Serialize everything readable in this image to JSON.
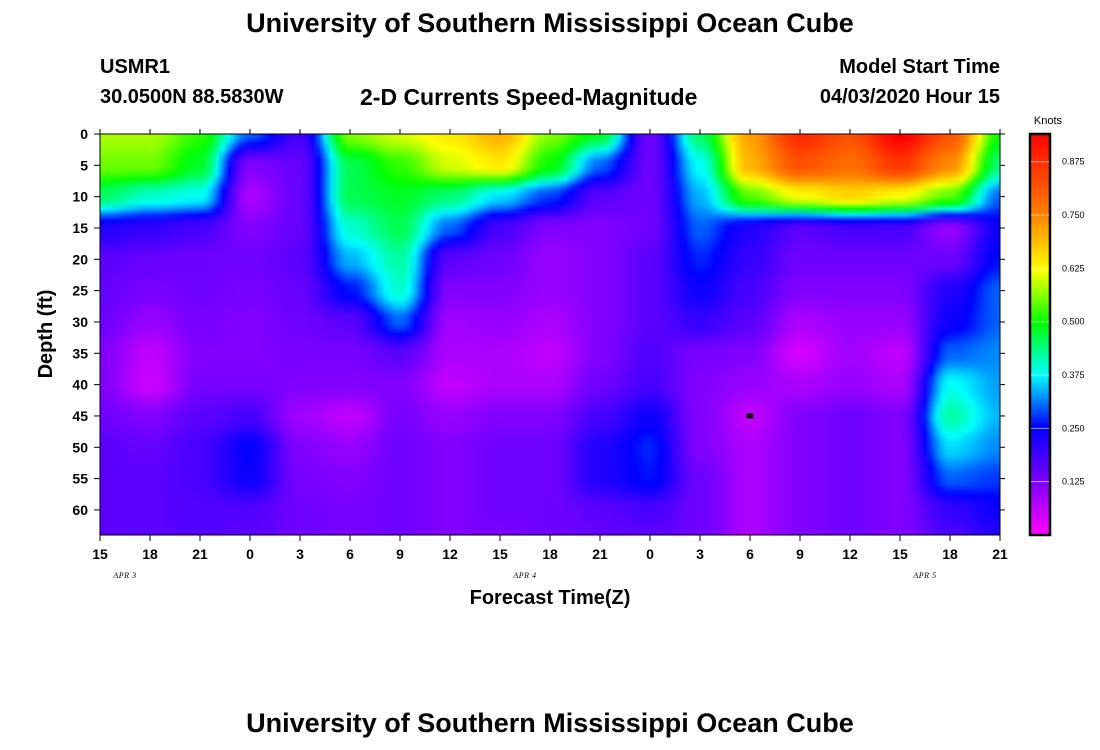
{
  "header": {
    "title": "University of Southern Mississippi Ocean Cube",
    "station_id": "USMR1",
    "coords": "30.0500N 88.5830W",
    "chart_title": "2-D Currents Speed-Magnitude",
    "start_label": "Model Start Time",
    "start_value": "04/03/2020 Hour 15"
  },
  "footer": {
    "title": "University of Southern Mississippi Ocean Cube"
  },
  "chart_data": {
    "type": "heatmap",
    "xlabel": "Forecast Time(Z)",
    "ylabel": "Depth (ft)",
    "x_ticks": [
      "15",
      "18",
      "21",
      "0",
      "3",
      "6",
      "9",
      "12",
      "15",
      "18",
      "21",
      "0",
      "3",
      "6",
      "9",
      "12",
      "15",
      "18",
      "21"
    ],
    "y_ticks": [
      "0",
      "5",
      "10",
      "15",
      "20",
      "25",
      "30",
      "35",
      "40",
      "45",
      "50",
      "55",
      "60"
    ],
    "date_labels": [
      "APR 3",
      "APR 4",
      "APR 5"
    ],
    "x_range_hours": [
      0,
      54
    ],
    "y_range_ft": [
      0,
      64
    ],
    "colorbar": {
      "title": "Knots",
      "ticks": [
        "0.125",
        "0.250",
        "0.375",
        "0.500",
        "0.625",
        "0.750",
        "0.875"
      ],
      "range": [
        0,
        0.94
      ]
    },
    "marker": {
      "hour": 39,
      "depth": 45
    },
    "depth_levels": [
      0,
      5,
      10,
      15,
      20,
      25,
      30,
      35,
      40,
      45,
      50,
      55,
      60,
      64
    ],
    "columns": [
      {
        "hour": 0,
        "speeds": [
          0.58,
          0.55,
          0.45,
          0.22,
          0.16,
          0.15,
          0.14,
          0.12,
          0.12,
          0.14,
          0.16,
          0.16,
          0.16,
          0.16
        ]
      },
      {
        "hour": 3,
        "speeds": [
          0.58,
          0.55,
          0.4,
          0.2,
          0.15,
          0.13,
          0.1,
          0.06,
          0.05,
          0.12,
          0.15,
          0.16,
          0.16,
          0.16
        ]
      },
      {
        "hour": 6,
        "speeds": [
          0.52,
          0.48,
          0.38,
          0.18,
          0.14,
          0.14,
          0.13,
          0.12,
          0.13,
          0.16,
          0.18,
          0.18,
          0.17,
          0.17
        ]
      },
      {
        "hour": 9,
        "speeds": [
          0.3,
          0.12,
          0.08,
          0.12,
          0.14,
          0.13,
          0.12,
          0.12,
          0.13,
          0.18,
          0.25,
          0.24,
          0.17,
          0.16
        ]
      },
      {
        "hour": 12,
        "speeds": [
          0.18,
          0.15,
          0.15,
          0.15,
          0.16,
          0.15,
          0.14,
          0.13,
          0.12,
          0.09,
          0.12,
          0.13,
          0.14,
          0.14
        ]
      },
      {
        "hour": 15,
        "speeds": [
          0.56,
          0.46,
          0.46,
          0.4,
          0.34,
          0.26,
          0.16,
          0.13,
          0.12,
          0.06,
          0.1,
          0.12,
          0.13,
          0.13
        ]
      },
      {
        "hour": 18,
        "speeds": [
          0.6,
          0.52,
          0.48,
          0.46,
          0.42,
          0.4,
          0.3,
          0.16,
          0.12,
          0.13,
          0.14,
          0.14,
          0.14,
          0.14
        ]
      },
      {
        "hour": 21,
        "speeds": [
          0.64,
          0.6,
          0.44,
          0.3,
          0.16,
          0.12,
          0.09,
          0.08,
          0.06,
          0.1,
          0.12,
          0.12,
          0.12,
          0.12
        ]
      },
      {
        "hour": 24,
        "speeds": [
          0.7,
          0.64,
          0.36,
          0.18,
          0.14,
          0.12,
          0.1,
          0.08,
          0.08,
          0.12,
          0.14,
          0.14,
          0.14,
          0.13
        ]
      },
      {
        "hour": 27,
        "speeds": [
          0.56,
          0.5,
          0.28,
          0.12,
          0.1,
          0.1,
          0.08,
          0.06,
          0.08,
          0.12,
          0.14,
          0.14,
          0.14,
          0.14
        ]
      },
      {
        "hour": 30,
        "speeds": [
          0.48,
          0.3,
          0.16,
          0.12,
          0.12,
          0.12,
          0.12,
          0.12,
          0.14,
          0.18,
          0.22,
          0.22,
          0.16,
          0.15
        ]
      },
      {
        "hour": 33,
        "speeds": [
          0.14,
          0.14,
          0.14,
          0.14,
          0.16,
          0.16,
          0.16,
          0.17,
          0.18,
          0.24,
          0.27,
          0.26,
          0.18,
          0.16
        ]
      },
      {
        "hour": 36,
        "speeds": [
          0.45,
          0.38,
          0.34,
          0.3,
          0.27,
          0.24,
          0.2,
          0.13,
          0.12,
          0.12,
          0.12,
          0.14,
          0.14,
          0.14
        ]
      },
      {
        "hour": 39,
        "speeds": [
          0.72,
          0.7,
          0.54,
          0.22,
          0.2,
          0.18,
          0.16,
          0.12,
          0.1,
          0.06,
          0.08,
          0.08,
          0.08,
          0.08
        ]
      },
      {
        "hour": 42,
        "speeds": [
          0.88,
          0.82,
          0.62,
          0.16,
          0.14,
          0.12,
          0.08,
          0.04,
          0.08,
          0.12,
          0.12,
          0.12,
          0.12,
          0.12
        ]
      },
      {
        "hour": 45,
        "speeds": [
          0.82,
          0.78,
          0.66,
          0.18,
          0.14,
          0.12,
          0.1,
          0.09,
          0.1,
          0.14,
          0.14,
          0.14,
          0.14,
          0.14
        ]
      },
      {
        "hour": 48,
        "speeds": [
          0.94,
          0.86,
          0.62,
          0.18,
          0.14,
          0.12,
          0.1,
          0.06,
          0.08,
          0.12,
          0.12,
          0.12,
          0.12,
          0.12
        ]
      },
      {
        "hour": 51,
        "speeds": [
          0.82,
          0.74,
          0.54,
          0.1,
          0.14,
          0.22,
          0.24,
          0.3,
          0.38,
          0.42,
          0.36,
          0.3,
          0.2,
          0.18
        ]
      },
      {
        "hour": 54,
        "speeds": [
          0.5,
          0.44,
          0.3,
          0.24,
          0.26,
          0.3,
          0.3,
          0.32,
          0.33,
          0.34,
          0.32,
          0.28,
          0.24,
          0.22
        ]
      }
    ]
  }
}
